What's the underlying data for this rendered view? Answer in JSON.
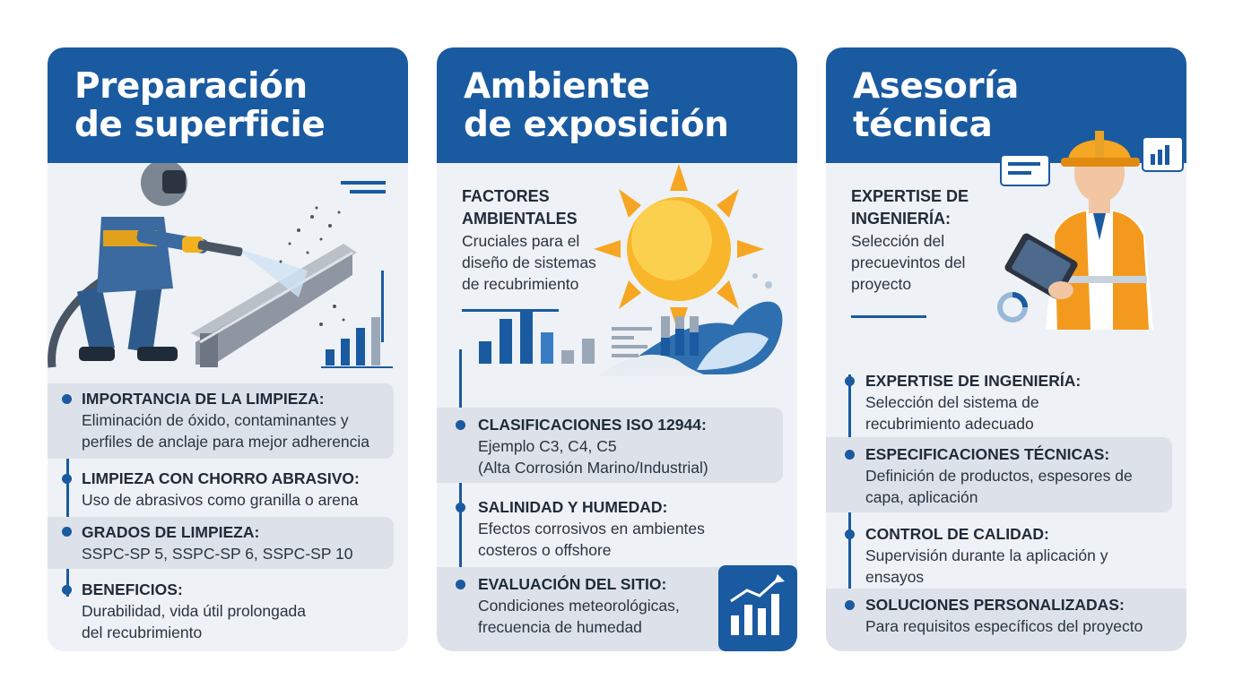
{
  "cards": [
    {
      "title_line1": "Preparación",
      "title_line2": "de superficie",
      "items": [
        {
          "title": "IMPORTANCIA DE LA LIMPIEZA:",
          "line1": "Eliminación de óxido, contaminantes y",
          "line2": "perfiles de anclaje para mejor adherencia"
        },
        {
          "title": "LIMPIEZA CON CHORRO ABRASIVO:",
          "line1": "Uso de abrasivos como granilla o arena",
          "line2": ""
        },
        {
          "title": "GRADOS DE LIMPIEZA:",
          "line1": "SSPC-SP 5, SSPC-SP 6, SSPC-SP 10",
          "line2": ""
        },
        {
          "title": "BENEFICIOS:",
          "line1": "Durabilidad, vida útil prolongada",
          "line2": "del recubrimiento"
        }
      ]
    },
    {
      "title_line1": "Ambiente",
      "title_line2": "de exposición",
      "intro_title_line1": "FACTORES",
      "intro_title_line2": "AMBIENTALES",
      "intro_line1": "Cruciales para el",
      "intro_line2": "diseño de sistemas",
      "intro_line3": "de recubrimiento",
      "items": [
        {
          "title": "CLASIFICACIONES ISO 12944:",
          "line1": "Ejemplo C3, C4, C5",
          "line2": "(Alta Corrosión Marino/Industrial)"
        },
        {
          "title": "SALINIDAD Y HUMEDAD:",
          "line1": "Efectos corrosivos en ambientes",
          "line2": "costeros o offshore"
        },
        {
          "title": "EVALUACIÓN DEL SITIO:",
          "line1": "Condiciones meteorológicas,",
          "line2": "frecuencia de humedad"
        }
      ]
    },
    {
      "title_line1": "Asesoría",
      "title_line2": "técnica",
      "intro_title_line1": "EXPERTISE DE",
      "intro_title_line2": "INGENIERÍA:",
      "intro_line1": "Selección del",
      "intro_line2": "precuevintos del",
      "intro_line3": "proyecto",
      "items": [
        {
          "title": "EXPERTISE DE INGENIERÍA:",
          "line1": "Selección del sistema de",
          "line2": "recubrimiento adecuado"
        },
        {
          "title": "ESPECIFICACIONES TÉCNICAS:",
          "line1": "Definición de productos, espesores de",
          "line2": "capa, aplicación"
        },
        {
          "title": "CONTROL DE CALIDAD:",
          "line1": "Supervisión durante la aplicación y",
          "line2": "ensayos"
        },
        {
          "title": "SOLUCIONES PERSONALIZADAS:",
          "line1": "Para requisitos específicos del proyecto",
          "line2": ""
        }
      ]
    }
  ],
  "colors": {
    "primary": "#1a5aa0",
    "card_bg": "#eef1f5",
    "shade": "#dde2ea",
    "safety_orange": "#f39a1e",
    "sun": "#f8b62a"
  },
  "icons": [
    "sandblaster-worker-illustration",
    "sun-icon",
    "wave-icon",
    "engineer-illustration",
    "bar-chart-icon",
    "trend-chart-icon",
    "pie-chart-icon",
    "speech-bubble-icon"
  ]
}
